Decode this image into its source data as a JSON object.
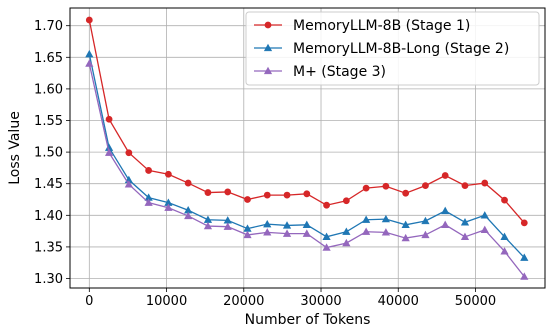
{
  "chart_data": {
    "type": "line",
    "title": "",
    "xlabel": "Number of Tokens",
    "ylabel": "Loss Value",
    "xlim": [
      -2500,
      59000
    ],
    "ylim": [
      1.285,
      1.728
    ],
    "xticks": [
      0,
      10000,
      20000,
      30000,
      40000,
      50000
    ],
    "yticks": [
      1.3,
      1.35,
      1.4,
      1.45,
      1.5,
      1.55,
      1.6,
      1.65,
      1.7
    ],
    "grid": true,
    "legend_position": "top-right",
    "x": [
      0,
      2560,
      5120,
      7680,
      10240,
      12800,
      15360,
      17920,
      20480,
      23040,
      25600,
      28160,
      30720,
      33280,
      35840,
      38400,
      40960,
      43520,
      46080,
      48640,
      51200,
      53760,
      56320
    ],
    "series": [
      {
        "name": "MemoryLLM-8B (Stage 1)",
        "color": "#d62728",
        "marker": "circle",
        "values": [
          1.709,
          1.552,
          1.499,
          1.471,
          1.465,
          1.451,
          1.436,
          1.437,
          1.425,
          1.432,
          1.432,
          1.434,
          1.416,
          1.423,
          1.443,
          1.446,
          1.435,
          1.447,
          1.463,
          1.447,
          1.451,
          1.424,
          1.388
        ]
      },
      {
        "name": "MemoryLLM-8B-Long (Stage 2)",
        "color": "#1f77b4",
        "marker": "triangle",
        "values": [
          1.655,
          1.507,
          1.456,
          1.428,
          1.42,
          1.408,
          1.393,
          1.392,
          1.379,
          1.386,
          1.384,
          1.385,
          1.366,
          1.374,
          1.393,
          1.394,
          1.385,
          1.391,
          1.407,
          1.389,
          1.4,
          1.366,
          1.333
        ]
      },
      {
        "name": "M+ (Stage 3)",
        "color": "#9467bd",
        "marker": "triangle",
        "values": [
          1.64,
          1.499,
          1.449,
          1.42,
          1.412,
          1.399,
          1.383,
          1.382,
          1.369,
          1.373,
          1.371,
          1.371,
          1.349,
          1.356,
          1.374,
          1.373,
          1.364,
          1.369,
          1.385,
          1.366,
          1.377,
          1.343,
          1.303
        ]
      }
    ]
  }
}
